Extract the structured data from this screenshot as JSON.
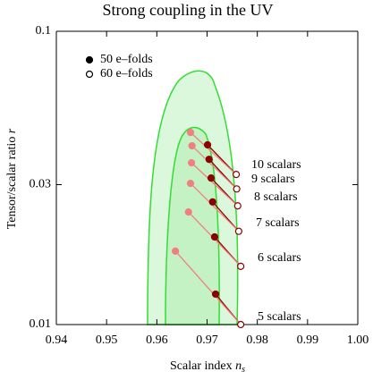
{
  "chart_data": {
    "type": "scatter",
    "title": "Strong coupling in the UV",
    "xlabel": {
      "text": "Scalar index ",
      "var": "n",
      "sub": "s"
    },
    "ylabel": {
      "text": "Tensor/scalar ratio ",
      "var": "r"
    },
    "xlim": [
      0.94,
      1.0
    ],
    "xticks": [
      0.94,
      0.95,
      0.96,
      0.97,
      0.98,
      0.99,
      {
        "value": 1.0,
        "label": "1.00"
      }
    ],
    "ylim": [
      0.01,
      0.1
    ],
    "yticks": [
      0.01,
      0.03,
      0.1
    ],
    "log_y": true,
    "series": [
      {
        "name": "50 e–folds",
        "color": "#8b0000",
        "marker": "filled",
        "x": [
          0.9701,
          0.9704,
          0.9708,
          0.9711,
          0.9715,
          0.9717
        ],
        "values": [
          0.041,
          0.0366,
          0.0316,
          0.0262,
          0.0199,
          0.0127
        ]
      },
      {
        "name": "60 e–folds",
        "color": "#8b0000",
        "marker": "open",
        "x": [
          0.9758,
          0.9759,
          0.9761,
          0.9763,
          0.9767,
          0.9767
        ],
        "values": [
          0.0325,
          0.029,
          0.0254,
          0.0208,
          0.0158,
          0.01
        ]
      },
      {
        "color": "#f08080",
        "marker": "filled",
        "x": [
          0.9667,
          0.967,
          0.9669,
          0.9667,
          0.9663,
          0.9637
        ],
        "values": [
          0.0452,
          0.0407,
          0.0356,
          0.0303,
          0.0242,
          0.0178
        ]
      }
    ],
    "annotations": [
      "10 scalars",
      "9 scalars",
      "8 scalars",
      "7 scalars",
      "6 scalars",
      "5 scalars"
    ],
    "annotation_color": "#e8141c"
  }
}
